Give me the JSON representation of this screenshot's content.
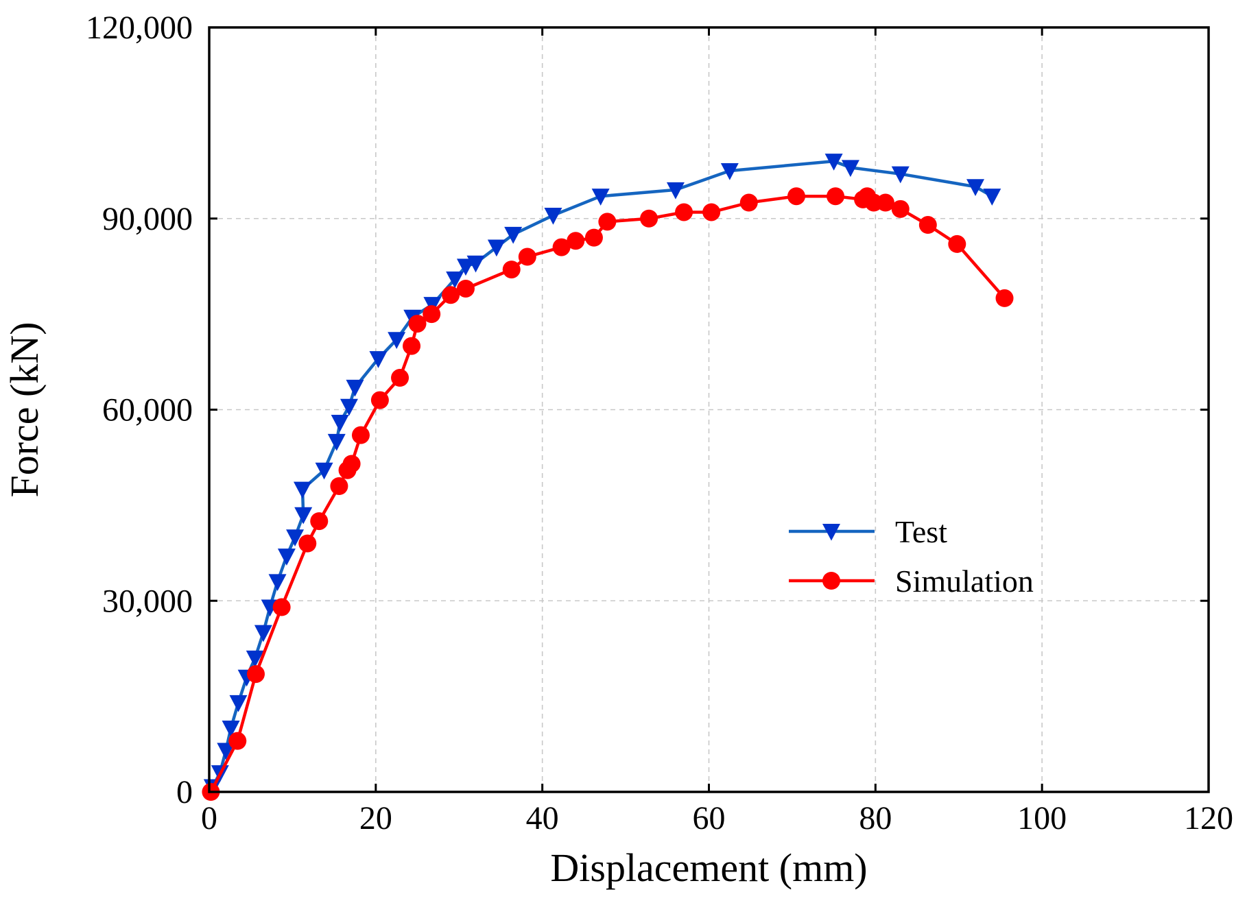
{
  "chart_data": {
    "type": "line",
    "xlabel": "Displacement (mm)",
    "ylabel": "Force (kN)",
    "xlim": [
      0,
      120
    ],
    "ylim": [
      0,
      120000
    ],
    "x_ticks": [
      "0",
      "20",
      "40",
      "60",
      "80",
      "100",
      "120"
    ],
    "y_ticks": [
      "0",
      "30,000",
      "60,000",
      "90,000",
      "120,000"
    ],
    "grid": true,
    "legend_position": "center-right",
    "series": [
      {
        "name": "Test",
        "color": "#0033cc",
        "line_color": "#1565c0",
        "marker": "down-triangle",
        "points": [
          [
            0.4,
            800
          ],
          [
            1.3,
            3000
          ],
          [
            2.0,
            6500
          ],
          [
            2.6,
            10000
          ],
          [
            3.5,
            14000
          ],
          [
            4.5,
            18000
          ],
          [
            5.5,
            21000
          ],
          [
            6.5,
            25000
          ],
          [
            7.3,
            29000
          ],
          [
            8.2,
            33000
          ],
          [
            9.3,
            37000
          ],
          [
            10.3,
            40000
          ],
          [
            11.3,
            43500
          ],
          [
            11.2,
            47500
          ],
          [
            13.8,
            50500
          ],
          [
            15.3,
            55000
          ],
          [
            15.7,
            58000
          ],
          [
            16.8,
            60500
          ],
          [
            17.5,
            63500
          ],
          [
            20.3,
            68000
          ],
          [
            22.5,
            71000
          ],
          [
            24.4,
            74500
          ],
          [
            26.8,
            76500
          ],
          [
            29.5,
            80500
          ],
          [
            30.8,
            82500
          ],
          [
            32.0,
            83000
          ],
          [
            34.5,
            85500
          ],
          [
            36.5,
            87500
          ],
          [
            41.3,
            90500
          ],
          [
            47.0,
            93500
          ],
          [
            56.0,
            94500
          ],
          [
            62.5,
            97500
          ],
          [
            75.0,
            99000
          ],
          [
            77.0,
            98000
          ],
          [
            83.0,
            97000
          ],
          [
            92.0,
            95000
          ],
          [
            94.0,
            93500
          ]
        ]
      },
      {
        "name": "Simulation",
        "color": "#ff0000",
        "line_color": "#ff0000",
        "marker": "circle",
        "points": [
          [
            0.2,
            0
          ],
          [
            3.4,
            8000
          ],
          [
            5.6,
            18500
          ],
          [
            8.7,
            29000
          ],
          [
            11.8,
            39000
          ],
          [
            13.2,
            42500
          ],
          [
            15.6,
            48000
          ],
          [
            16.6,
            50500
          ],
          [
            17.1,
            51500
          ],
          [
            18.2,
            56000
          ],
          [
            20.5,
            61500
          ],
          [
            22.9,
            65000
          ],
          [
            24.3,
            70000
          ],
          [
            25.0,
            73500
          ],
          [
            26.7,
            75000
          ],
          [
            29.0,
            78000
          ],
          [
            30.8,
            79000
          ],
          [
            36.3,
            82000
          ],
          [
            38.2,
            84000
          ],
          [
            42.3,
            85500
          ],
          [
            44.0,
            86500
          ],
          [
            46.2,
            87000
          ],
          [
            47.8,
            89500
          ],
          [
            52.8,
            90000
          ],
          [
            57.0,
            91000
          ],
          [
            60.3,
            91000
          ],
          [
            64.8,
            92500
          ],
          [
            70.5,
            93500
          ],
          [
            75.2,
            93500
          ],
          [
            78.5,
            93000
          ],
          [
            79.0,
            93500
          ],
          [
            79.8,
            92500
          ],
          [
            81.2,
            92500
          ],
          [
            83.0,
            91500
          ],
          [
            86.3,
            89000
          ],
          [
            89.8,
            86000
          ],
          [
            95.5,
            77500
          ]
        ]
      }
    ]
  }
}
